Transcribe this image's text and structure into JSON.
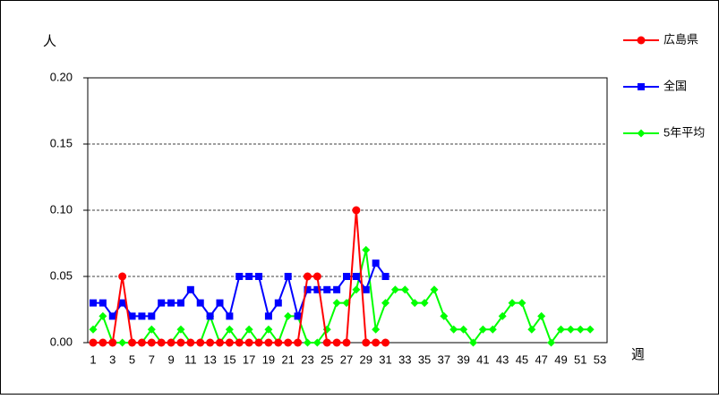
{
  "chart_data": {
    "type": "line",
    "y_label": "人",
    "x_label": "週",
    "categories": [
      "1",
      null,
      "3",
      null,
      "5",
      null,
      "7",
      null,
      "9",
      null,
      "11",
      null,
      "13",
      null,
      "15",
      null,
      "17",
      null,
      "19",
      null,
      "21",
      null,
      "23",
      null,
      "25",
      null,
      "27",
      null,
      "29",
      null,
      "31",
      null,
      "33",
      null,
      "35",
      null,
      "37",
      null,
      "39",
      null,
      "41",
      null,
      "43",
      null,
      "45",
      null,
      "47",
      null,
      "49",
      null,
      "51",
      null,
      "53"
    ],
    "ylim": [
      0,
      0.2
    ],
    "yticks": [
      {
        "value": 0,
        "label": "0.00"
      },
      {
        "value": 0.05,
        "label": "0.05"
      },
      {
        "value": 0.1,
        "label": "0.10"
      },
      {
        "value": 0.15,
        "label": "0.15"
      },
      {
        "value": 0.2,
        "label": "0.20"
      }
    ],
    "grid": true,
    "series": [
      {
        "name": "広島県",
        "color": "#ff0000",
        "marker": "circle",
        "values": [
          0,
          0,
          0,
          0.05,
          0,
          0,
          0,
          0,
          0,
          0,
          0,
          0,
          0,
          0,
          0,
          0,
          0,
          0,
          0,
          0,
          0,
          0,
          0.05,
          0.05,
          0,
          0,
          0,
          0.1,
          0,
          0,
          0,
          null,
          null,
          null,
          null,
          null,
          null,
          null,
          null,
          null,
          null,
          null,
          null,
          null,
          null,
          null,
          null,
          null,
          null,
          null,
          null,
          null,
          null
        ]
      },
      {
        "name": "全国",
        "color": "#0000ff",
        "marker": "square",
        "values": [
          0.03,
          0.03,
          0.02,
          0.03,
          0.02,
          0.02,
          0.02,
          0.03,
          0.03,
          0.03,
          0.04,
          0.03,
          0.02,
          0.03,
          0.02,
          0.05,
          0.05,
          0.05,
          0.02,
          0.03,
          0.05,
          0.02,
          0.04,
          0.04,
          0.04,
          0.04,
          0.05,
          0.05,
          0.04,
          0.06,
          0.05,
          null,
          null,
          null,
          null,
          null,
          null,
          null,
          null,
          null,
          null,
          null,
          null,
          null,
          null,
          null,
          null,
          null,
          null,
          null,
          null,
          null,
          null
        ]
      },
      {
        "name": "5年平均",
        "color": "#00ff00",
        "marker": "diamond",
        "values": [
          0.01,
          0.02,
          0,
          0,
          0,
          0,
          0.01,
          0,
          0,
          0.01,
          0,
          0,
          0.02,
          0,
          0.01,
          0,
          0.01,
          0,
          0.01,
          0,
          0.02,
          0.02,
          0,
          0,
          0.01,
          0.03,
          0.03,
          0.04,
          0.07,
          0.01,
          0.03,
          0.04,
          0.04,
          0.03,
          0.03,
          0.04,
          0.02,
          0.01,
          0.01,
          0,
          0.01,
          0.01,
          0.02,
          0.03,
          0.03,
          0.01,
          0.02,
          0,
          0.01,
          0.01,
          0.01,
          0.01,
          null
        ]
      }
    ]
  }
}
